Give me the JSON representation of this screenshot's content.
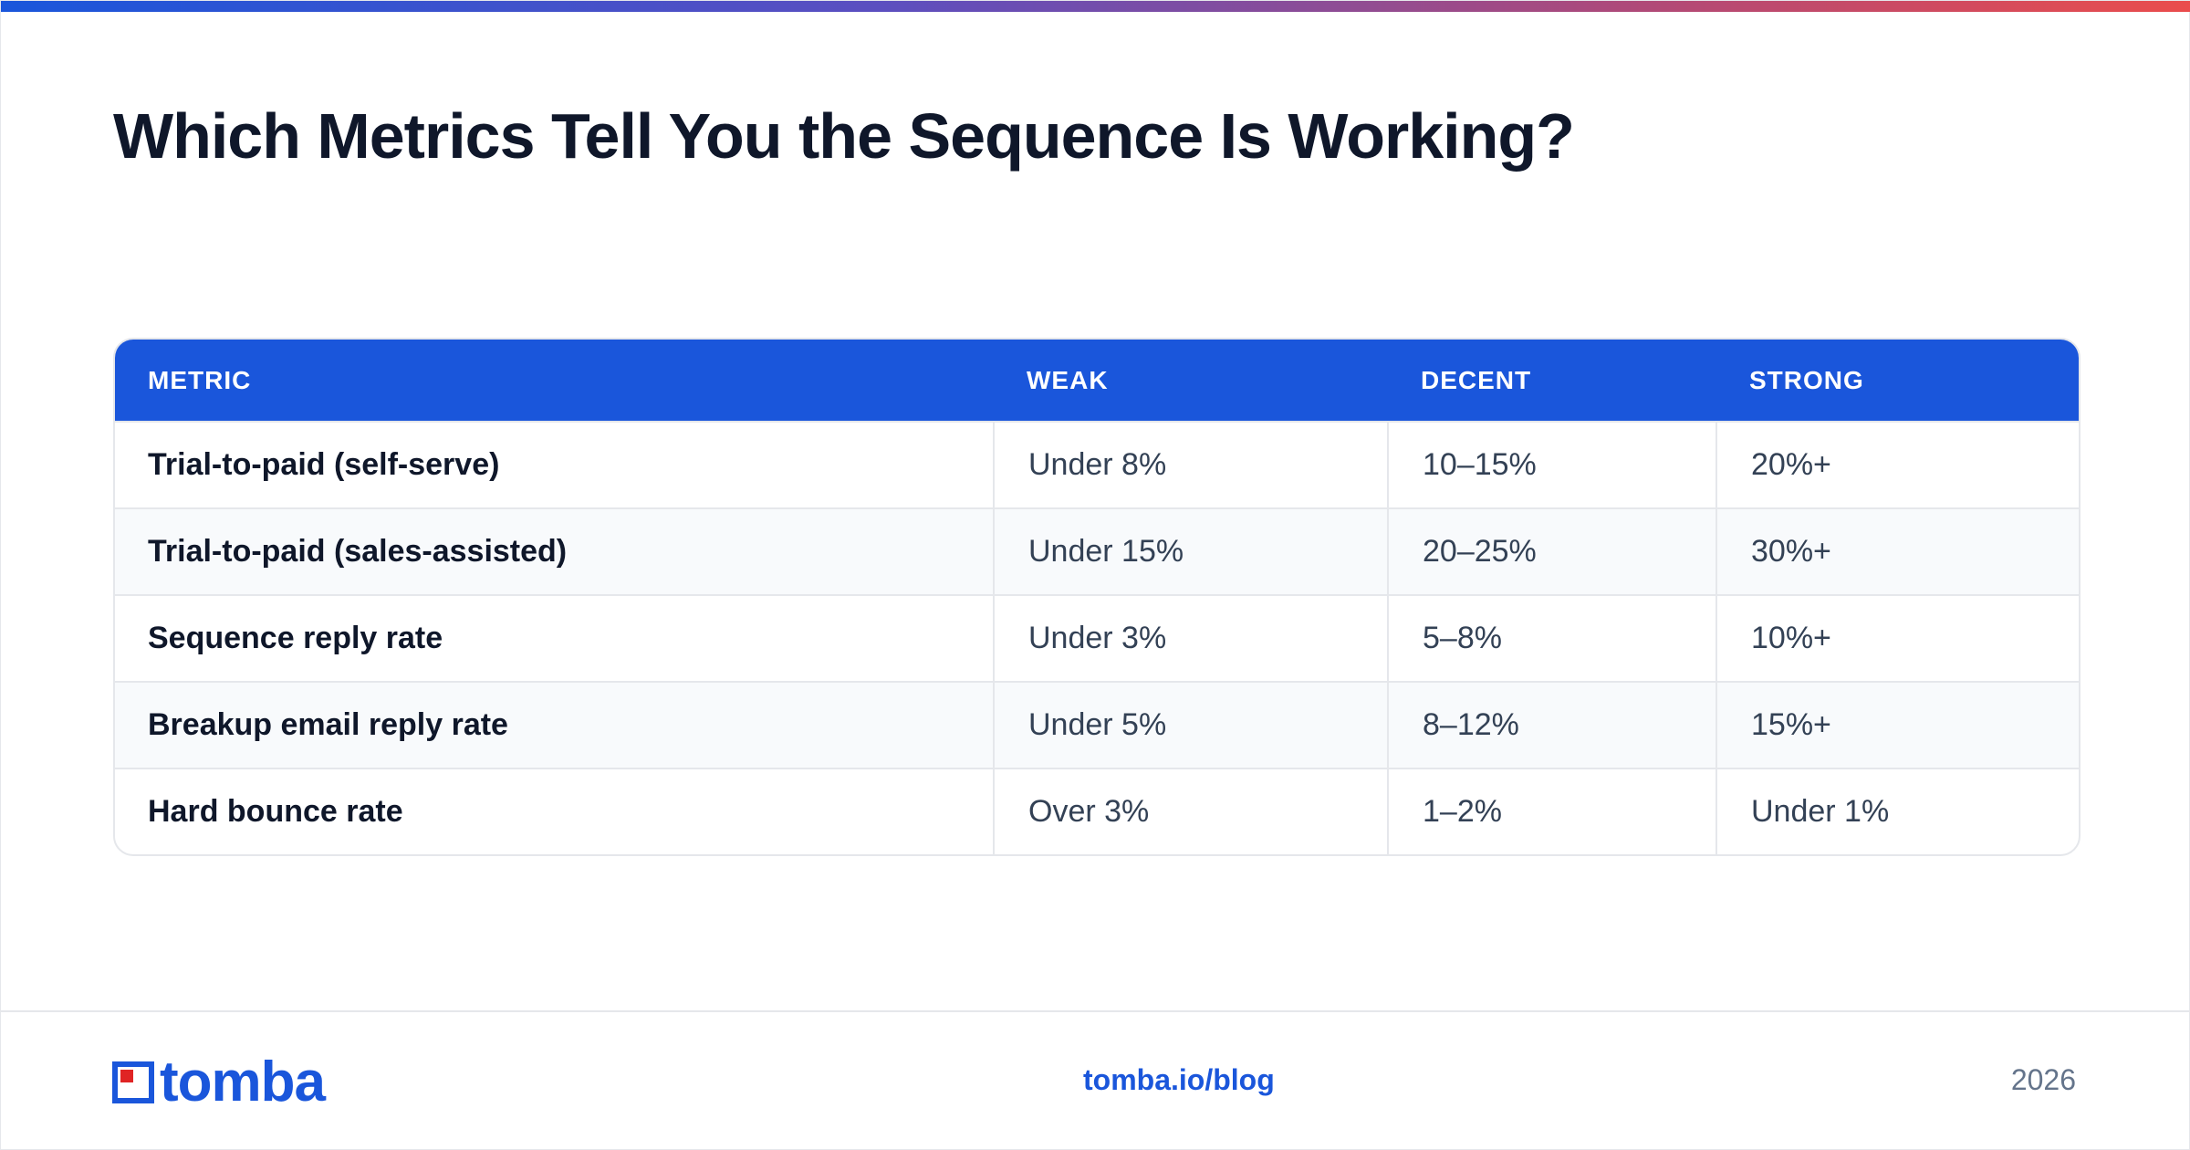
{
  "page": {
    "title": "Which Metrics Tell You the Sequence Is Working?"
  },
  "table": {
    "headers": [
      "METRIC",
      "WEAK",
      "DECENT",
      "STRONG"
    ],
    "rows": [
      [
        "Trial-to-paid (self-serve)",
        "Under 8%",
        "10–15%",
        "20%+"
      ],
      [
        "Trial-to-paid (sales-assisted)",
        "Under 15%",
        "20–25%",
        "30%+"
      ],
      [
        "Sequence reply rate",
        "Under 3%",
        "5–8%",
        "10%+"
      ],
      [
        "Breakup email reply rate",
        "Under 5%",
        "8–12%",
        "15%+"
      ],
      [
        "Hard bounce rate",
        "Over 3%",
        "1–2%",
        "Under 1%"
      ]
    ]
  },
  "footer": {
    "logo_text": "tomba",
    "link": "tomba.io/blog",
    "year": "2026"
  },
  "colors": {
    "brand_blue": "#1a56db",
    "logo_accent_red": "#e02424",
    "text_dark": "#0f172a",
    "row_alt": "#f8fafc",
    "border": "#e5e7eb"
  }
}
